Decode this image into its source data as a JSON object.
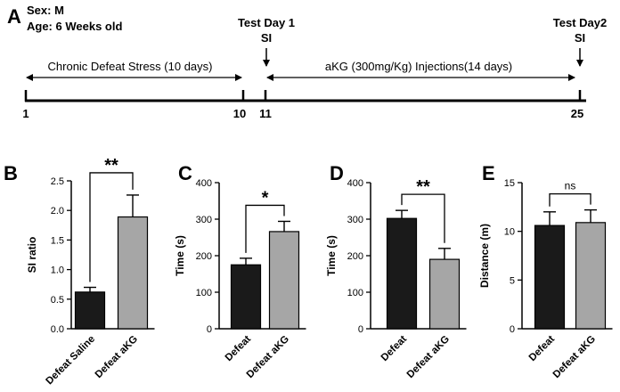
{
  "timeline": {
    "panel_letter": "A",
    "sex_label": "Sex: M",
    "age_label": "Age: 6 Weeks old",
    "test_day1_title": "Test Day 1",
    "test_day1_sub": "SI",
    "test_day2_title": "Test Day2",
    "test_day2_sub": "SI",
    "cds_label": "Chronic Defeat Stress (10 days)",
    "akg_label": "aKG (300mg/Kg) Injections(14 days)",
    "day_ticks": [
      "1",
      "10",
      "11",
      "25"
    ]
  },
  "chart_data": [
    {
      "panel": "B",
      "type": "bar",
      "categories": [
        "Defeat Saline",
        "Defeat aKG"
      ],
      "values": [
        0.62,
        1.89
      ],
      "errors": [
        0.08,
        0.37
      ],
      "ylabel": "SI ratio",
      "ylim": [
        0,
        2.5
      ],
      "yticks": [
        "0.0",
        "0.5",
        "1.0",
        "1.5",
        "2.0",
        "2.5"
      ],
      "significance": "**",
      "colors": [
        "#1a1a1a",
        "#a6a6a6"
      ]
    },
    {
      "panel": "C",
      "type": "bar",
      "categories": [
        "Defeat",
        "Defeat aKG"
      ],
      "values": [
        175,
        266
      ],
      "errors": [
        18,
        28
      ],
      "ylabel": "Time (s)",
      "ylim": [
        0,
        400
      ],
      "yticks": [
        "0",
        "100",
        "200",
        "300",
        "400"
      ],
      "significance": "*",
      "colors": [
        "#1a1a1a",
        "#a6a6a6"
      ]
    },
    {
      "panel": "D",
      "type": "bar",
      "categories": [
        "Defeat",
        "Defeat aKG"
      ],
      "values": [
        302,
        190
      ],
      "errors": [
        22,
        30
      ],
      "ylabel": "Time (s)",
      "ylim": [
        0,
        400
      ],
      "yticks": [
        "0",
        "100",
        "200",
        "300",
        "400"
      ],
      "significance": "**",
      "colors": [
        "#1a1a1a",
        "#a6a6a6"
      ]
    },
    {
      "panel": "E",
      "type": "bar",
      "categories": [
        "Defeat",
        "Defeat aKG"
      ],
      "values": [
        10.6,
        10.9
      ],
      "errors": [
        1.4,
        1.3
      ],
      "ylabel": "Distance (m)",
      "ylim": [
        0,
        15
      ],
      "yticks": [
        "0",
        "5",
        "10",
        "15"
      ],
      "significance": "ns",
      "colors": [
        "#1a1a1a",
        "#a6a6a6"
      ]
    }
  ]
}
